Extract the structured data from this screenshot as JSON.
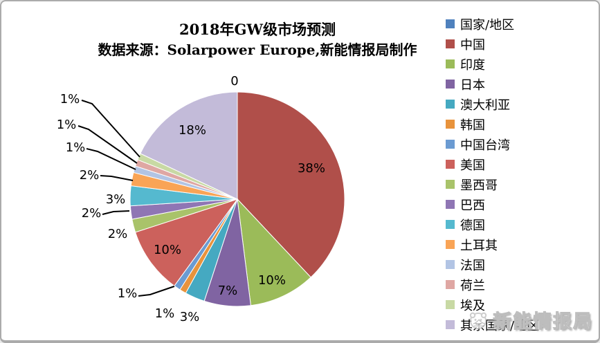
{
  "chart_data": {
    "type": "pie",
    "title": "2018年GW级市场预测",
    "subtitle": "数据来源：Solarpower Europe,新能情报局制作",
    "legend_position": "right",
    "unit": "%",
    "categories": [
      "国家/地区",
      "中国",
      "印度",
      "日本",
      "澳大利亚",
      "韩国",
      "中国台湾",
      "美国",
      "墨西哥",
      "巴西",
      "德国",
      "土耳其",
      "法国",
      "荷兰",
      "埃及",
      "其余国家/地区"
    ],
    "values": [
      0,
      38,
      10,
      7,
      3,
      1,
      1,
      10,
      2,
      2,
      3,
      2,
      1,
      1,
      1,
      18
    ],
    "labels": [
      "0",
      "38%",
      "10%",
      "7%",
      "3%",
      "1%",
      "1%",
      "10%",
      "2%",
      "2%",
      "3%",
      "2%",
      "1%",
      "1%",
      "1%",
      "18%"
    ],
    "colors": [
      "#4F81BD",
      "#B04F4A",
      "#9BBB59",
      "#8064A2",
      "#45A9C1",
      "#E8933C",
      "#6B9BD2",
      "#CC615C",
      "#A9C36A",
      "#8F76B4",
      "#55B9CF",
      "#F9A456",
      "#B2C4E4",
      "#DFA7A3",
      "#C8D9A4",
      "#C3BBD9"
    ]
  },
  "watermark": {
    "text": "新能情报局"
  }
}
